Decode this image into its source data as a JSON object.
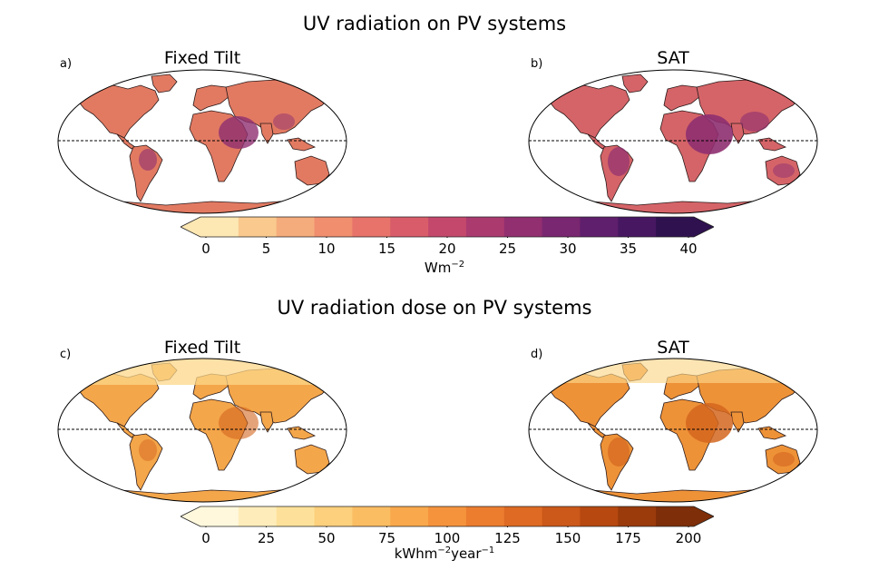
{
  "top": {
    "title": "UV radiation on PV systems",
    "panel_a": {
      "label": "a)",
      "title": "Fixed Tilt"
    },
    "panel_b": {
      "label": "b)",
      "title": "SAT"
    },
    "colorbar": {
      "ticks": [
        "0",
        "5",
        "10",
        "15",
        "20",
        "25",
        "30",
        "35",
        "40"
      ],
      "unit_base": "Wm",
      "unit_exp": "−2",
      "range": [
        0,
        40
      ],
      "colors": [
        "#fde7b2",
        "#f9c98e",
        "#f5ac7c",
        "#f08e6e",
        "#e8736a",
        "#d95c6a",
        "#c4486c",
        "#ab3a6f",
        "#922f70",
        "#792770",
        "#5f1f6c",
        "#471762",
        "#2f1150"
      ]
    }
  },
  "bottom": {
    "title": "UV radiation dose on PV systems",
    "panel_c": {
      "label": "c)",
      "title": "Fixed Tilt"
    },
    "panel_d": {
      "label": "d)",
      "title": "SAT"
    },
    "colorbar": {
      "ticks": [
        "0",
        "25",
        "50",
        "75",
        "100",
        "125",
        "150",
        "175",
        "200"
      ],
      "unit_base": "kWhm",
      "unit_exp1": "−2",
      "unit_mid": "year",
      "unit_exp2": "−1",
      "range": [
        0,
        200
      ],
      "colors": [
        "#fff8dc",
        "#feedbb",
        "#fde19a",
        "#fcd07c",
        "#fbbd62",
        "#f9a84c",
        "#f5933c",
        "#ec7d2f",
        "#de6a23",
        "#cc5819",
        "#b64810",
        "#9b3a0b",
        "#7e2e08"
      ]
    }
  },
  "colors": {
    "top_a_land": "#e27a62",
    "top_b_land": "#d56468",
    "top_tropics": "#8e2f70",
    "bot_c_land": "#f4a64a",
    "bot_d_land": "#ee9238",
    "bot_tropics": "#d4661f",
    "bot_north": "#fcd78a"
  }
}
